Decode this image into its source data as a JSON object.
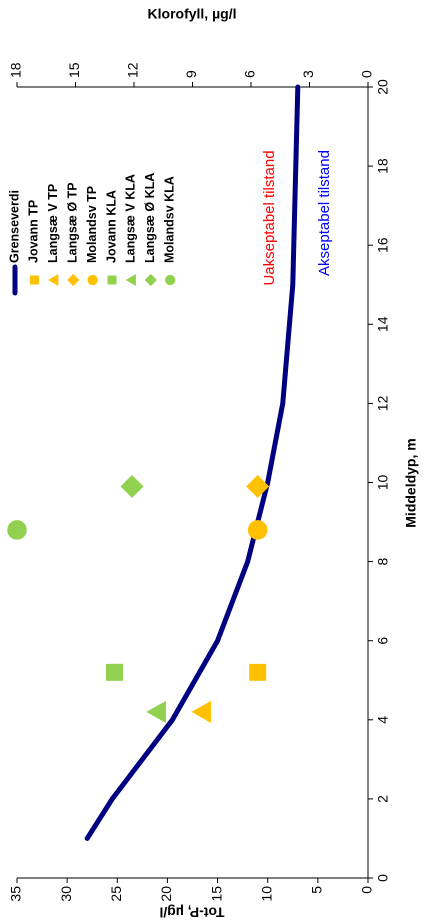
{
  "chart_data": {
    "type": "scatter",
    "x_label": "Middeldyp, m",
    "y_label": "Tot-P, µg/l",
    "y2_label": "Klorofyll, µg/l",
    "xlim": [
      0,
      20
    ],
    "xticks": [
      0,
      2,
      4,
      6,
      8,
      10,
      12,
      14,
      16,
      18,
      20
    ],
    "ylim": [
      0,
      35
    ],
    "yticks": [
      0,
      5,
      10,
      15,
      20,
      25,
      30,
      35
    ],
    "y2lim": [
      0,
      18
    ],
    "y2ticks": [
      0,
      3,
      6,
      9,
      12,
      15,
      18
    ],
    "grid": false,
    "legend": "upper right",
    "series": [
      {
        "name": "Grenseverdi",
        "color": "#000080",
        "marker": "line",
        "x": [
          1,
          2,
          4,
          6,
          8,
          10,
          12,
          15,
          20
        ],
        "values": [
          28,
          25.5,
          19.5,
          15,
          12,
          10,
          8.5,
          7.5,
          7
        ]
      },
      {
        "name": "Jovann TP",
        "color": "#FFC000",
        "marker": "square",
        "x": [
          5.2
        ],
        "values": [
          11
        ]
      },
      {
        "name": "Langsæ V TP",
        "color": "#FFC000",
        "marker": "triangle",
        "x": [
          4.2
        ],
        "values": [
          16.5
        ]
      },
      {
        "name": "Langsæ Ø TP",
        "color": "#FFC000",
        "marker": "diamond",
        "x": [
          9.9
        ],
        "values": [
          11
        ]
      },
      {
        "name": "Molandsv TP",
        "color": "#FFC000",
        "marker": "circle",
        "x": [
          8.8
        ],
        "values": [
          11
        ]
      },
      {
        "name": "Jovann KLA",
        "color": "#92D050",
        "marker": "square",
        "axis": "y2",
        "x": [
          5.2
        ],
        "values": [
          13
        ]
      },
      {
        "name": "Langsæ V KLA",
        "color": "#92D050",
        "marker": "triangle",
        "axis": "y2",
        "x": [
          4.2
        ],
        "values": [
          10.8
        ]
      },
      {
        "name": "Langsæ Ø KLA",
        "color": "#92D050",
        "marker": "diamond",
        "axis": "y2",
        "x": [
          9.9
        ],
        "values": [
          12.1
        ]
      },
      {
        "name": "Molandsv KLA",
        "color": "#92D050",
        "marker": "circle",
        "axis": "y2",
        "x": [
          8.8
        ],
        "values": [
          18
        ]
      }
    ],
    "annotations": [
      {
        "text": "Uakseptabel tilstand",
        "color": "#FF0000"
      },
      {
        "text": "Akseptabel tilstand",
        "color": "#0000FF"
      }
    ]
  }
}
